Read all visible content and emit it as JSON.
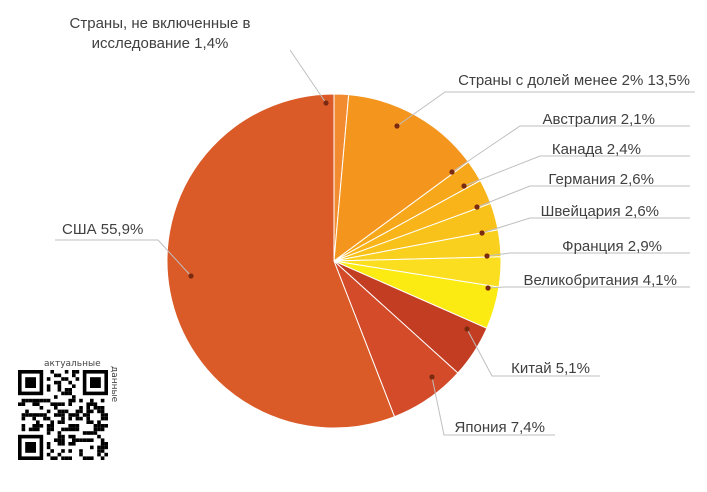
{
  "chart_data": {
    "type": "pie",
    "slices": [
      {
        "label": "Страны, не включенные в",
        "label2": "исследование 1,4%",
        "value": 1.4,
        "color": "#F28A30"
      },
      {
        "label": "Страны с долей менее 2% 13,5%",
        "value": 13.5,
        "color": "#F4951E"
      },
      {
        "label": "Австралия 2,1%",
        "value": 2.1,
        "color": "#F6A81A"
      },
      {
        "label": "Канада 2,4%",
        "value": 2.4,
        "color": "#F8B418"
      },
      {
        "label": "Германия 2,6%",
        "value": 2.6,
        "color": "#F9C21A"
      },
      {
        "label": "Швейцария 2,6%",
        "value": 2.6,
        "color": "#FAD01E"
      },
      {
        "label": "Франция 2,9%",
        "value": 2.9,
        "color": "#FBDE20"
      },
      {
        "label": "Великобритания 4,1%",
        "value": 4.1,
        "color": "#FCEB12"
      },
      {
        "label": "Китай 5,1%",
        "value": 5.1,
        "color": "#C23D22"
      },
      {
        "label": "Япония 7,4%",
        "value": 7.4,
        "color": "#D44B2A"
      },
      {
        "label": "США 55,9%",
        "value": 55.9,
        "color": "#DA5A28"
      }
    ]
  },
  "qr": {
    "caption_top": "актуальные",
    "caption_side": "данные"
  }
}
